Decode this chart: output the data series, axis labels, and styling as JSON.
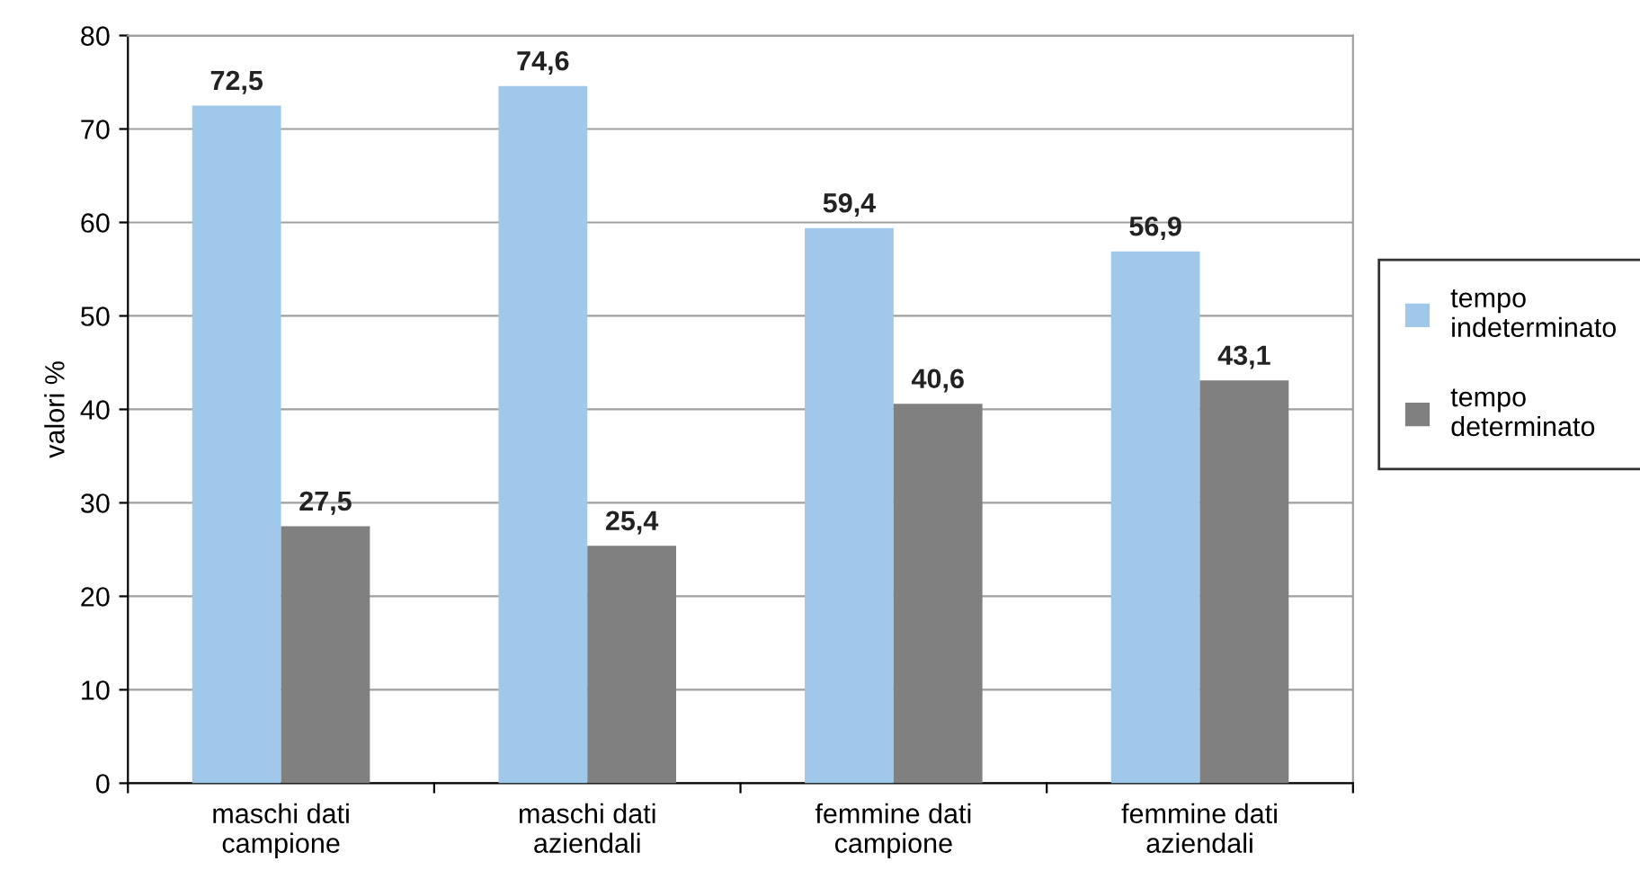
{
  "chart_data": {
    "type": "bar",
    "ylabel": "valori %",
    "categories": [
      "maschi dati\ncampione",
      "maschi dati\naziendali",
      "femmine dati\ncampione",
      "femmine dati\naziendali"
    ],
    "series": [
      {
        "name": "tempo indeterminato",
        "color": "#9fc8ea",
        "values": [
          72.5,
          74.6,
          59.4,
          56.9
        ],
        "value_labels": [
          "72,5",
          "74,6",
          "59,4",
          "56,9"
        ]
      },
      {
        "name": "tempo determinato",
        "color": "#808080",
        "values": [
          27.5,
          25.4,
          40.6,
          43.1
        ],
        "value_labels": [
          "27,5",
          "25,4",
          "40,6",
          "43,1"
        ]
      }
    ],
    "ylim": [
      0,
      80
    ],
    "yticks": [
      0,
      10,
      20,
      30,
      40,
      50,
      60,
      70,
      80
    ],
    "grid": "y",
    "legend": "right"
  }
}
